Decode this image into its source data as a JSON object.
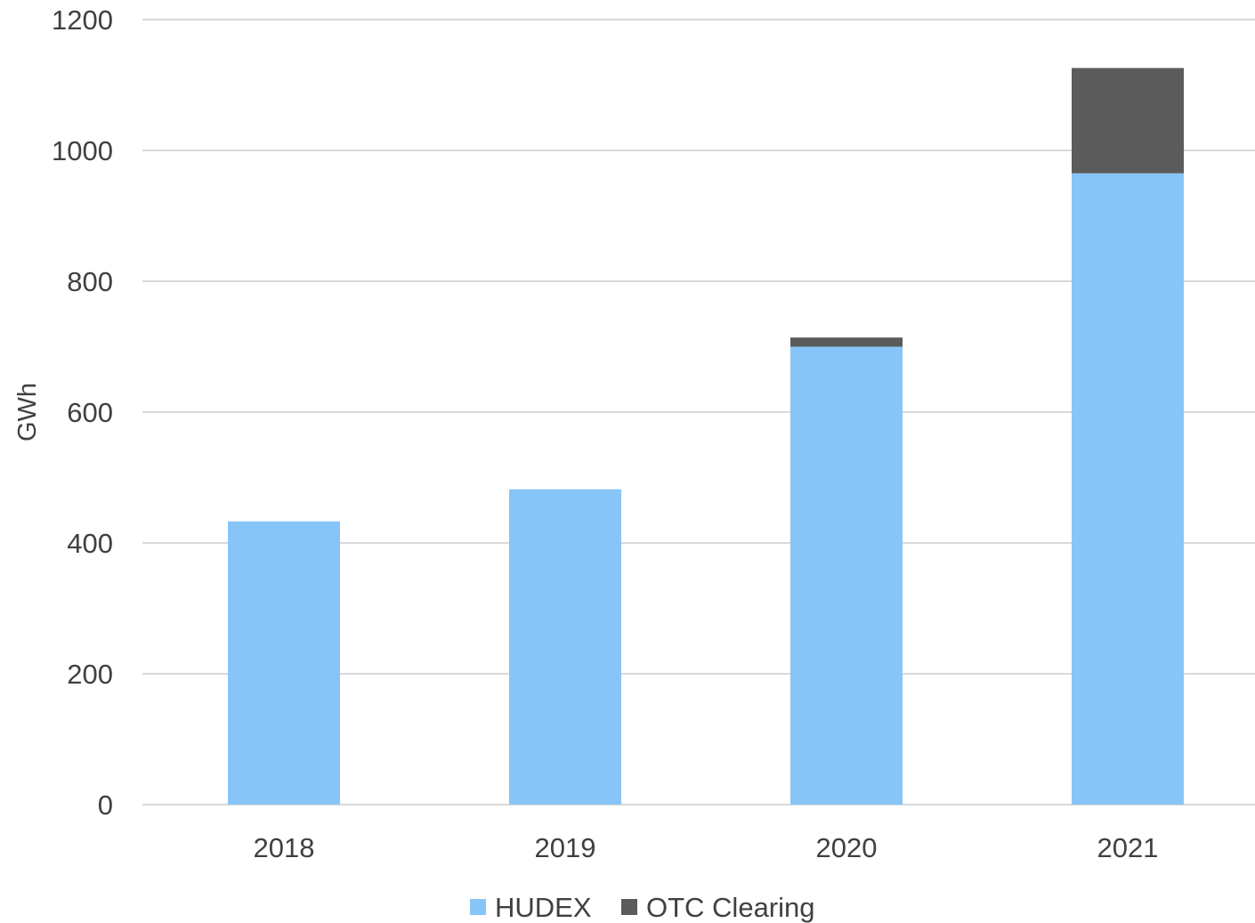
{
  "chart_data": {
    "type": "bar",
    "stacked": true,
    "categories": [
      "2018",
      "2019",
      "2020",
      "2021"
    ],
    "series": [
      {
        "name": "HUDEX",
        "color": "#87c5f8",
        "values": [
          433,
          482,
          700,
          965
        ]
      },
      {
        "name": "OTC Clearing",
        "color": "#5b5b5b",
        "values": [
          0,
          0,
          14,
          161
        ]
      }
    ],
    "ylabel": "GWh",
    "xlabel": "",
    "title": "",
    "ylim": [
      0,
      1200
    ],
    "yticks": [
      0,
      200,
      400,
      600,
      800,
      1000,
      1200
    ],
    "grid": true,
    "legend_position": "bottom"
  }
}
